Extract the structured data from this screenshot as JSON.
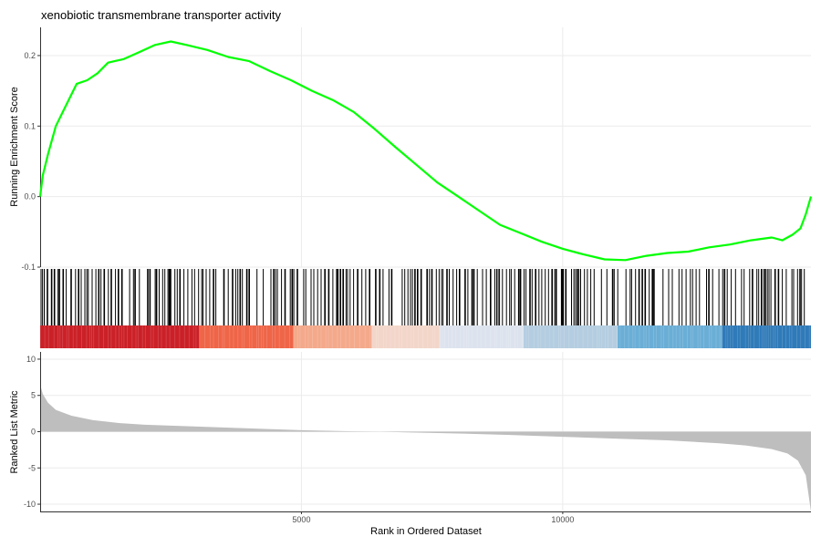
{
  "chart_data": {
    "type": "line",
    "title": "xenobiotic transmembrane transporter activity",
    "xlabel": "Rank in Ordered Dataset",
    "colors": {
      "line": "#00ff00",
      "hits": "#000000",
      "metric_fill": "#bebebe",
      "grid": "#ebebeb",
      "gradient": [
        "#cb2027",
        "#ef6548",
        "#f4a98b",
        "#f3d6ca",
        "#dde3ee",
        "#b4cde0",
        "#6aaed6",
        "#2f7ab9"
      ]
    },
    "x_range": [
      0,
      14750
    ],
    "x_ticks": [
      5000,
      10000
    ],
    "running_score": {
      "ylabel": "Running Enrichment Score",
      "ylim": [
        -0.1,
        0.24
      ],
      "y_ticks": [
        -0.1,
        0.0,
        0.1,
        0.2
      ],
      "x": [
        0,
        50,
        150,
        300,
        500,
        700,
        900,
        1100,
        1300,
        1600,
        1900,
        2200,
        2500,
        2800,
        3200,
        3600,
        4000,
        4400,
        4800,
        5200,
        5600,
        6000,
        6400,
        6800,
        7200,
        7600,
        8000,
        8400,
        8800,
        9200,
        9600,
        10000,
        10400,
        10800,
        11200,
        11600,
        12000,
        12400,
        12800,
        13200,
        13600,
        14000,
        14200,
        14400,
        14550,
        14650,
        14750
      ],
      "y": [
        0.0,
        0.03,
        0.06,
        0.1,
        0.13,
        0.16,
        0.165,
        0.175,
        0.19,
        0.195,
        0.205,
        0.215,
        0.22,
        0.215,
        0.208,
        0.198,
        0.192,
        0.178,
        0.165,
        0.15,
        0.137,
        0.12,
        0.096,
        0.07,
        0.045,
        0.02,
        0.0,
        -0.02,
        -0.04,
        -0.052,
        -0.064,
        -0.074,
        -0.082,
        -0.089,
        -0.09,
        -0.084,
        -0.08,
        -0.078,
        -0.072,
        -0.068,
        -0.062,
        -0.058,
        -0.062,
        -0.054,
        -0.045,
        -0.025,
        0.0
      ]
    },
    "ranked_metric": {
      "ylabel": "Ranked List Metric",
      "ylim": [
        -11,
        11
      ],
      "y_ticks": [
        -10,
        -5,
        0,
        5,
        10
      ],
      "x": [
        0,
        50,
        150,
        300,
        600,
        1000,
        1500,
        2000,
        3000,
        4000,
        5000,
        6000,
        6500,
        7000,
        8000,
        9000,
        10000,
        11000,
        12000,
        13000,
        13500,
        14000,
        14300,
        14500,
        14650,
        14750
      ],
      "y": [
        6.5,
        5.2,
        4.0,
        3.0,
        2.2,
        1.6,
        1.2,
        0.95,
        0.7,
        0.45,
        0.2,
        0.05,
        0.0,
        -0.1,
        -0.25,
        -0.45,
        -0.7,
        -0.95,
        -1.2,
        -1.6,
        -1.9,
        -2.4,
        -3.0,
        -4.0,
        -6.0,
        -11.0
      ]
    }
  }
}
